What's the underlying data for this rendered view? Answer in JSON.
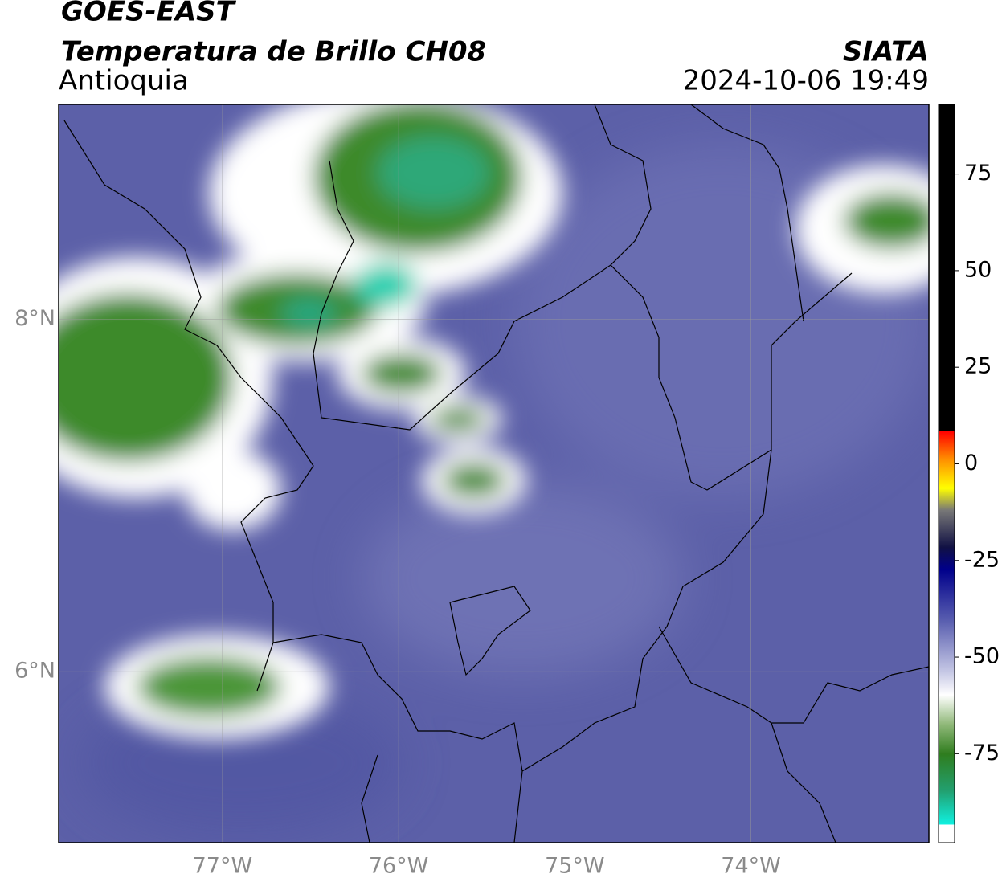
{
  "header": {
    "title": "GOES-EAST",
    "subtitle": "Temperatura de Brillo CH08",
    "region": "Antioquia",
    "source": "SIATA",
    "datetime": "2024-10-06 19:49"
  },
  "map": {
    "xlim": [
      -77.93,
      -72.99
    ],
    "ylim": [
      5.03,
      9.22
    ],
    "xticks": [
      {
        "value": -77,
        "label": "77°W"
      },
      {
        "value": -76,
        "label": "76°W"
      },
      {
        "value": -75,
        "label": "75°W"
      },
      {
        "value": -74,
        "label": "74°W"
      }
    ],
    "yticks": [
      {
        "value": 8,
        "label": "8°N"
      },
      {
        "value": 6,
        "label": "6°N"
      }
    ],
    "grid": true
  },
  "colorbar": {
    "clim": [
      -98,
      93
    ],
    "ticks": [
      75,
      50,
      25,
      0,
      -25,
      -50,
      -75
    ]
  }
}
